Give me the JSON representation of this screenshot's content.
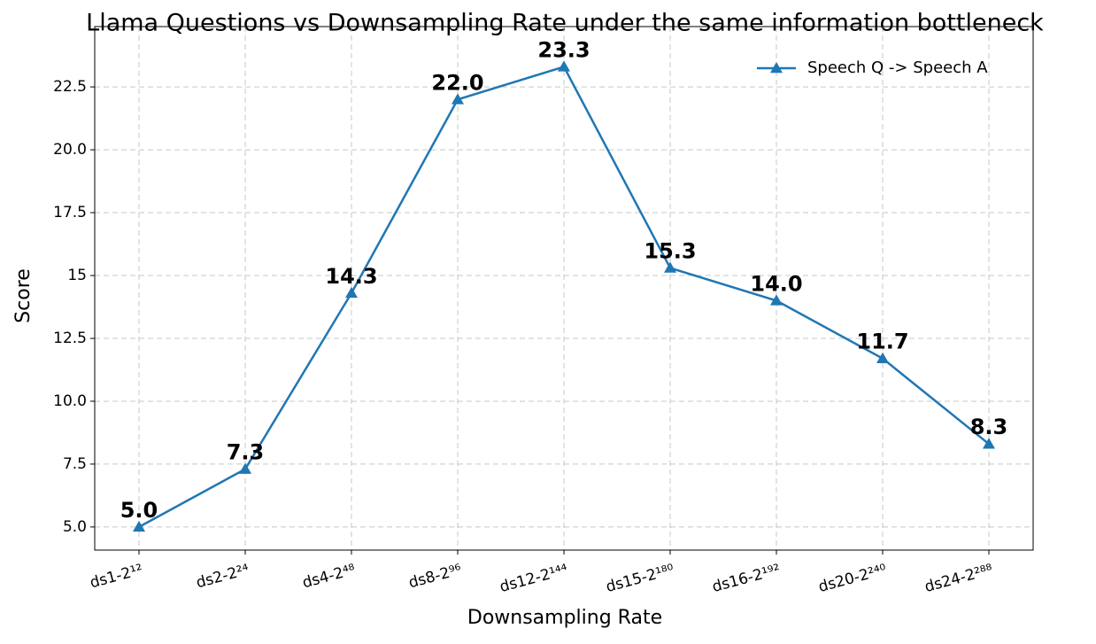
{
  "chart_data": {
    "type": "line",
    "title": "Llama Questions vs Downsampling Rate under the same information bottleneck",
    "x_label": "Downsampling Rate",
    "y_label": "Score",
    "categories": [
      "ds1-2¹²",
      "ds2-2²⁴",
      "ds4-2⁴⁸",
      "ds8-2⁹⁶",
      "ds12-2¹⁴⁴",
      "ds15-2¹⁸⁰",
      "ds16-2¹⁹²",
      "ds20-2²⁴⁰",
      "ds24-2²⁸⁸"
    ],
    "series": [
      {
        "name": "Speech Q -> Speech A",
        "color": "#1f77b4",
        "values": [
          5.0,
          7.3,
          14.3,
          22.0,
          23.3,
          15.3,
          14.0,
          11.7,
          8.3
        ],
        "value_labels": [
          "5.0",
          "7.3",
          "14.3",
          "22.0",
          "23.3",
          "15.3",
          "14.0",
          "11.7",
          "8.3"
        ]
      }
    ],
    "ylim": [
      4.08,
      24.9
    ],
    "yticks": [
      {
        "value": 5,
        "label": "5.0"
      },
      7.5,
      {
        "value": 10,
        "label": "10.0"
      },
      12.5,
      15,
      {
        "value": 17.5,
        "label": "17.5"
      },
      {
        "value": 20,
        "label": "20.0"
      },
      22.5
    ],
    "grid": true,
    "legend": "upper right",
    "marker": "triangle"
  }
}
